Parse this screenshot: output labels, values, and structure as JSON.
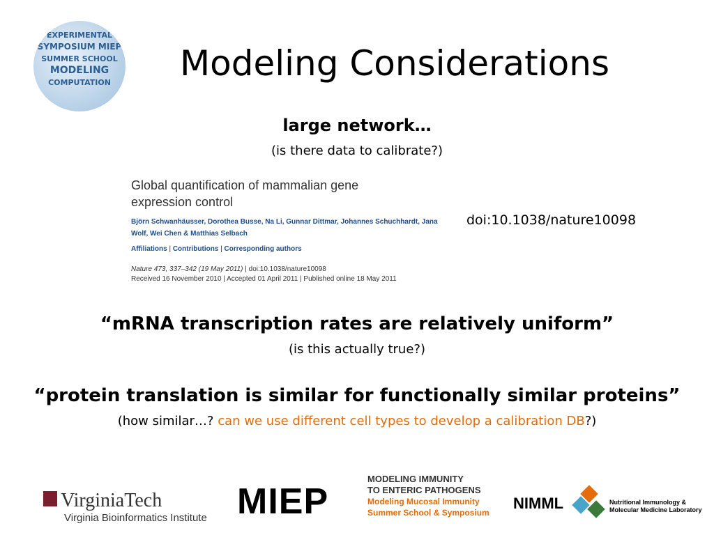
{
  "title": "Modeling Considerations",
  "badge": {
    "words": [
      "EXPERIMENTAL",
      "SYMPOSIUM MIEP",
      "SUMMER SCHOOL",
      "MODELING",
      "COMPUTATION"
    ]
  },
  "section1": {
    "heading": "large network…",
    "note": "(is there data to calibrate?)"
  },
  "article": {
    "title": "Global quantification of mammalian gene expression control",
    "authors": "Björn Schwanhäusser, Dorothea Busse, Na Li, Gunnar Dittmar, Johannes Schuchhardt, Jana Wolf, Wei Chen & Matthias Selbach",
    "links": [
      "Affiliations",
      "Contributions",
      "Corresponding authors"
    ],
    "citation": [
      "Nature 473, 337–342 (19 May 2011)",
      "doi:10.1038/nature10098"
    ],
    "dates": [
      "Received 16 November 2010",
      "Accepted 01 April 2011",
      "Published online 18 May 2011"
    ]
  },
  "doi": "doi:10.1038/nature10098",
  "section2": {
    "heading": "“mRNA transcription rates are relatively uniform”",
    "note": "(is this actually true?)"
  },
  "section3": {
    "heading": "“protein translation is similar for functionally similar proteins”",
    "note_start": "(how similar…?",
    "note_highlight": "can we use different cell types to develop a calibration DB",
    "note_end": "?)"
  },
  "footer": {
    "vt_name": "VirginiaTech",
    "vt_institute": "Virginia Bioinformatics Institute",
    "miep": "MIEP",
    "miep_lines": [
      "MODELING IMMUNITY",
      "TO ENTERIC PATHOGENS",
      "Modeling Mucosal Immunity",
      "Summer School & Symposium"
    ],
    "nimml": "NIMML",
    "nimml_lines": [
      "Nutritional Immunology &",
      "Molecular Medicine Laboratory"
    ]
  }
}
